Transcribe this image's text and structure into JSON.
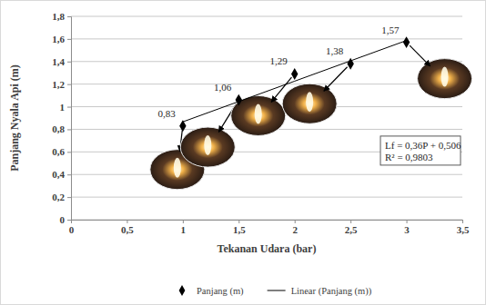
{
  "chart_data": {
    "type": "scatter",
    "x_label": "Tekanan Udara (bar)",
    "y_label": "Panjang Nyala Api (m)",
    "x": [
      1,
      1.5,
      2,
      2.5,
      3
    ],
    "series": [
      {
        "name": "Panjang (m)",
        "type": "scatter",
        "marker": "diamond",
        "color": "#000000",
        "values": [
          0.83,
          1.06,
          1.29,
          1.38,
          1.57
        ],
        "value_labels": [
          "0,83",
          "1,06",
          "1,29",
          "1,38",
          "1,57"
        ],
        "data_labels": true
      },
      {
        "name": "Linear (Panjang (m))",
        "type": "line",
        "line_style": "solid",
        "color": "#000000",
        "values": [
          0.866,
          1.046,
          1.226,
          1.406,
          1.586
        ]
      }
    ],
    "xlim": [
      0,
      3.5
    ],
    "xticks": [
      0,
      {
        "value": 0.5,
        "label": "0,5"
      },
      1,
      {
        "value": 1.5,
        "label": "1,5"
      },
      2,
      {
        "value": 2.5,
        "label": "2,5"
      },
      3,
      {
        "value": 3.5,
        "label": "3,5"
      }
    ],
    "ylim": [
      0,
      1.8
    ],
    "yticks": [
      0,
      {
        "value": 0.2,
        "label": "0,2"
      },
      {
        "value": 0.4,
        "label": "0,4"
      },
      {
        "value": 0.6,
        "label": "0,6"
      },
      {
        "value": 0.8,
        "label": "0,8"
      },
      1,
      {
        "value": 1.2,
        "label": "1,2"
      },
      {
        "value": 1.4,
        "label": "1,4"
      },
      {
        "value": 1.6,
        "label": "1,6"
      },
      {
        "value": 1.8,
        "label": "1,8"
      }
    ],
    "annotations": [
      "Lf = 0,36P + 0,506",
      "R² = 0,9803"
    ],
    "grid": true,
    "legend": "bottom"
  }
}
